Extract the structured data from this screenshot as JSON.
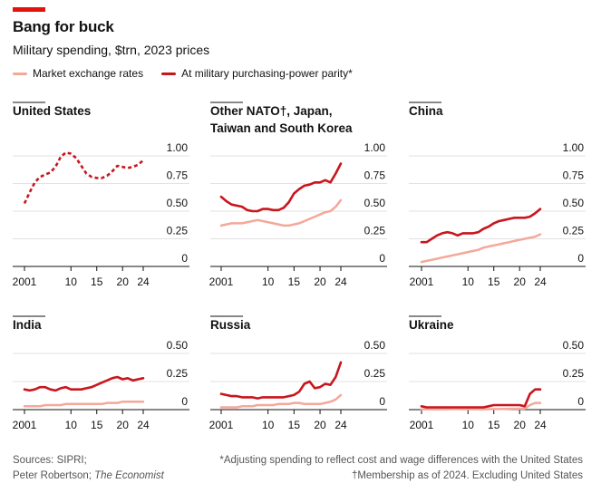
{
  "header": {
    "title": "Bang for buck",
    "subtitle": "Military spending, $trn, 2023 prices"
  },
  "legend": {
    "market": "Market exchange rates",
    "ppp": "At military purchasing-power parity*"
  },
  "colors": {
    "ppp": "#c8161d",
    "market": "#f4a89a",
    "axis": "#121212",
    "grid": "#d9d9d9"
  },
  "footer": {
    "sources": "Sources: SIPRI;",
    "credit_prefix": "Peter Robertson; ",
    "credit_pub": "The Economist",
    "note1": "*Adjusting spending to reflect cost and wage differences with the United States",
    "note2": "†Membership as of 2024. Excluding United States"
  },
  "chart_data": [
    {
      "type": "line",
      "title": [
        "United States"
      ],
      "x": [
        2001,
        2002,
        2003,
        2004,
        2005,
        2006,
        2007,
        2008,
        2009,
        2010,
        2011,
        2012,
        2013,
        2014,
        2015,
        2016,
        2017,
        2018,
        2019,
        2020,
        2021,
        2022,
        2023,
        2024
      ],
      "xticks": [
        {
          "v": 2001,
          "label": "2001"
        },
        {
          "v": 2010,
          "label": "10"
        },
        {
          "v": 2015,
          "label": "15"
        },
        {
          "v": 2020,
          "label": "20"
        },
        {
          "v": 2024,
          "label": "24"
        }
      ],
      "ylim": [
        0,
        1.0
      ],
      "yticks": [
        {
          "v": 0,
          "label": "0"
        },
        {
          "v": 0.25,
          "label": "0.25"
        },
        {
          "v": 0.5,
          "label": "0.50"
        },
        {
          "v": 0.75,
          "label": "0.75"
        },
        {
          "v": 1.0,
          "label": "1.00"
        }
      ],
      "series": [
        {
          "name": "PPP (dashed; market rates identical)",
          "style": "dashed",
          "values": [
            0.57,
            0.67,
            0.76,
            0.81,
            0.83,
            0.85,
            0.9,
            0.99,
            1.03,
            1.02,
            0.98,
            0.91,
            0.84,
            0.81,
            0.8,
            0.8,
            0.82,
            0.86,
            0.91,
            0.9,
            0.89,
            0.9,
            0.92,
            0.96
          ]
        }
      ]
    },
    {
      "type": "line",
      "title": [
        "Other NATO†, Japan,",
        "Taiwan and South Korea"
      ],
      "x": [
        2001,
        2002,
        2003,
        2004,
        2005,
        2006,
        2007,
        2008,
        2009,
        2010,
        2011,
        2012,
        2013,
        2014,
        2015,
        2016,
        2017,
        2018,
        2019,
        2020,
        2021,
        2022,
        2023,
        2024
      ],
      "xticks": [
        {
          "v": 2001,
          "label": "2001"
        },
        {
          "v": 2010,
          "label": "10"
        },
        {
          "v": 2015,
          "label": "15"
        },
        {
          "v": 2020,
          "label": "20"
        },
        {
          "v": 2024,
          "label": "24"
        }
      ],
      "ylim": [
        0,
        1.0
      ],
      "yticks": [
        {
          "v": 0,
          "label": "0"
        },
        {
          "v": 0.25,
          "label": "0.25"
        },
        {
          "v": 0.5,
          "label": "0.50"
        },
        {
          "v": 0.75,
          "label": "0.75"
        },
        {
          "v": 1.0,
          "label": "1.00"
        }
      ],
      "series": [
        {
          "name": "Market exchange rates",
          "style": "market",
          "values": [
            0.37,
            0.38,
            0.39,
            0.39,
            0.39,
            0.4,
            0.41,
            0.42,
            0.41,
            0.4,
            0.39,
            0.38,
            0.37,
            0.37,
            0.38,
            0.39,
            0.41,
            0.43,
            0.45,
            0.47,
            0.49,
            0.5,
            0.54,
            0.6
          ]
        },
        {
          "name": "At military PPP",
          "style": "ppp",
          "values": [
            0.63,
            0.59,
            0.56,
            0.55,
            0.54,
            0.51,
            0.5,
            0.5,
            0.52,
            0.52,
            0.51,
            0.51,
            0.53,
            0.58,
            0.66,
            0.7,
            0.73,
            0.74,
            0.76,
            0.76,
            0.78,
            0.76,
            0.84,
            0.93
          ]
        }
      ]
    },
    {
      "type": "line",
      "title": [
        "China"
      ],
      "x": [
        2001,
        2002,
        2003,
        2004,
        2005,
        2006,
        2007,
        2008,
        2009,
        2010,
        2011,
        2012,
        2013,
        2014,
        2015,
        2016,
        2017,
        2018,
        2019,
        2020,
        2021,
        2022,
        2023,
        2024
      ],
      "xticks": [
        {
          "v": 2001,
          "label": "2001"
        },
        {
          "v": 2010,
          "label": "10"
        },
        {
          "v": 2015,
          "label": "15"
        },
        {
          "v": 2020,
          "label": "20"
        },
        {
          "v": 2024,
          "label": "24"
        }
      ],
      "ylim": [
        0,
        1.0
      ],
      "yticks": [
        {
          "v": 0,
          "label": "0"
        },
        {
          "v": 0.25,
          "label": "0.25"
        },
        {
          "v": 0.5,
          "label": "0.50"
        },
        {
          "v": 0.75,
          "label": "0.75"
        },
        {
          "v": 1.0,
          "label": "1.00"
        }
      ],
      "series": [
        {
          "name": "Market exchange rates",
          "style": "market",
          "values": [
            0.04,
            0.05,
            0.06,
            0.07,
            0.08,
            0.09,
            0.1,
            0.11,
            0.12,
            0.13,
            0.14,
            0.15,
            0.17,
            0.18,
            0.19,
            0.2,
            0.21,
            0.22,
            0.23,
            0.24,
            0.25,
            0.26,
            0.27,
            0.29
          ]
        },
        {
          "name": "At military PPP",
          "style": "ppp",
          "values": [
            0.22,
            0.22,
            0.25,
            0.28,
            0.3,
            0.31,
            0.3,
            0.28,
            0.3,
            0.3,
            0.3,
            0.31,
            0.34,
            0.36,
            0.39,
            0.41,
            0.42,
            0.43,
            0.44,
            0.44,
            0.44,
            0.45,
            0.48,
            0.52
          ]
        }
      ]
    },
    {
      "type": "line",
      "title": [
        "India"
      ],
      "x": [
        2001,
        2002,
        2003,
        2004,
        2005,
        2006,
        2007,
        2008,
        2009,
        2010,
        2011,
        2012,
        2013,
        2014,
        2015,
        2016,
        2017,
        2018,
        2019,
        2020,
        2021,
        2022,
        2023,
        2024
      ],
      "xticks": [
        {
          "v": 2001,
          "label": "2001"
        },
        {
          "v": 2010,
          "label": "10"
        },
        {
          "v": 2015,
          "label": "15"
        },
        {
          "v": 2020,
          "label": "20"
        },
        {
          "v": 2024,
          "label": "24"
        }
      ],
      "ylim": [
        0,
        0.5
      ],
      "yticks": [
        {
          "v": 0,
          "label": "0"
        },
        {
          "v": 0.25,
          "label": "0.25"
        },
        {
          "v": 0.5,
          "label": "0.50"
        }
      ],
      "series": [
        {
          "name": "Market exchange rates",
          "style": "market",
          "values": [
            0.03,
            0.03,
            0.03,
            0.03,
            0.04,
            0.04,
            0.04,
            0.04,
            0.05,
            0.05,
            0.05,
            0.05,
            0.05,
            0.05,
            0.05,
            0.05,
            0.06,
            0.06,
            0.06,
            0.07,
            0.07,
            0.07,
            0.07,
            0.07
          ]
        },
        {
          "name": "At military PPP",
          "style": "ppp",
          "values": [
            0.18,
            0.17,
            0.18,
            0.2,
            0.2,
            0.18,
            0.17,
            0.19,
            0.2,
            0.18,
            0.18,
            0.18,
            0.19,
            0.2,
            0.22,
            0.24,
            0.26,
            0.28,
            0.29,
            0.27,
            0.28,
            0.26,
            0.27,
            0.28
          ]
        }
      ]
    },
    {
      "type": "line",
      "title": [
        "Russia"
      ],
      "x": [
        2001,
        2002,
        2003,
        2004,
        2005,
        2006,
        2007,
        2008,
        2009,
        2010,
        2011,
        2012,
        2013,
        2014,
        2015,
        2016,
        2017,
        2018,
        2019,
        2020,
        2021,
        2022,
        2023,
        2024
      ],
      "xticks": [
        {
          "v": 2001,
          "label": "2001"
        },
        {
          "v": 2010,
          "label": "10"
        },
        {
          "v": 2015,
          "label": "15"
        },
        {
          "v": 2020,
          "label": "20"
        },
        {
          "v": 2024,
          "label": "24"
        }
      ],
      "ylim": [
        0,
        0.5
      ],
      "yticks": [
        {
          "v": 0,
          "label": "0"
        },
        {
          "v": 0.25,
          "label": "0.25"
        },
        {
          "v": 0.5,
          "label": "0.50"
        }
      ],
      "series": [
        {
          "name": "Market exchange rates",
          "style": "market",
          "values": [
            0.02,
            0.02,
            0.02,
            0.02,
            0.03,
            0.03,
            0.03,
            0.04,
            0.04,
            0.04,
            0.04,
            0.05,
            0.05,
            0.05,
            0.06,
            0.06,
            0.05,
            0.05,
            0.05,
            0.05,
            0.06,
            0.07,
            0.09,
            0.13
          ]
        },
        {
          "name": "At military PPP",
          "style": "ppp",
          "values": [
            0.14,
            0.13,
            0.12,
            0.12,
            0.11,
            0.11,
            0.11,
            0.1,
            0.11,
            0.11,
            0.11,
            0.11,
            0.11,
            0.12,
            0.13,
            0.16,
            0.23,
            0.25,
            0.19,
            0.2,
            0.23,
            0.22,
            0.29,
            0.42
          ]
        }
      ]
    },
    {
      "type": "line",
      "title": [
        "Ukraine"
      ],
      "x": [
        2001,
        2002,
        2003,
        2004,
        2005,
        2006,
        2007,
        2008,
        2009,
        2010,
        2011,
        2012,
        2013,
        2014,
        2015,
        2016,
        2017,
        2018,
        2019,
        2020,
        2021,
        2022,
        2023,
        2024
      ],
      "xticks": [
        {
          "v": 2001,
          "label": "2001"
        },
        {
          "v": 2010,
          "label": "10"
        },
        {
          "v": 2015,
          "label": "15"
        },
        {
          "v": 2020,
          "label": "20"
        },
        {
          "v": 2024,
          "label": "24"
        }
      ],
      "ylim": [
        0,
        0.5
      ],
      "yticks": [
        {
          "v": 0,
          "label": "0"
        },
        {
          "v": 0.25,
          "label": "0.25"
        },
        {
          "v": 0.5,
          "label": "0.50"
        }
      ],
      "series": [
        {
          "name": "Market exchange rates",
          "style": "market",
          "values": [
            0.003,
            0.003,
            0.003,
            0.003,
            0.004,
            0.004,
            0.005,
            0.005,
            0.004,
            0.004,
            0.004,
            0.004,
            0.004,
            0.004,
            0.005,
            0.005,
            0.006,
            0.007,
            0.008,
            0.008,
            0.009,
            0.04,
            0.06,
            0.06
          ]
        },
        {
          "name": "At military PPP",
          "style": "ppp",
          "values": [
            0.03,
            0.02,
            0.02,
            0.02,
            0.02,
            0.02,
            0.02,
            0.02,
            0.02,
            0.02,
            0.02,
            0.02,
            0.02,
            0.03,
            0.04,
            0.04,
            0.04,
            0.04,
            0.04,
            0.04,
            0.03,
            0.14,
            0.18,
            0.18
          ]
        }
      ]
    }
  ]
}
